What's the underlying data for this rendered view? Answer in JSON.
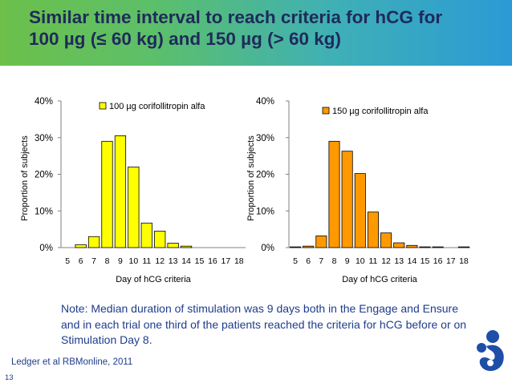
{
  "slide": {
    "title_line1": "Similar time interval to reach criteria for hCG for",
    "title_line2": "100 µg (≤ 60 kg) and 150 µg (> 60 kg)",
    "note": "Note: Median duration of stimulation was 9 days both in the Engage and Ensure and in each trial one third of the patients reached the criteria for hCG before or on Stimulation Day 8.",
    "reference": "Ledger et al RBMonline, 2011",
    "slide_number": "13"
  },
  "chart_data": [
    {
      "type": "bar",
      "categories": [
        "5",
        "6",
        "7",
        "8",
        "9",
        "10",
        "11",
        "12",
        "13",
        "14",
        "15",
        "16",
        "17",
        "18"
      ],
      "series": [
        {
          "name": "100 µg corifollitropin alfa",
          "values": [
            0,
            0.8,
            3.0,
            29.0,
            30.5,
            22.0,
            6.7,
            4.5,
            1.2,
            0.4,
            0,
            0,
            0,
            0
          ]
        }
      ],
      "bar_color": "#ffff00",
      "ylabel": "Proportion of subjects",
      "xlabel": "Day of hCG criteria",
      "ylim": [
        0,
        40
      ],
      "yticks": [
        "0%",
        "10%",
        "20%",
        "30%",
        "40%"
      ],
      "legend_position": "top-center",
      "grid": false
    },
    {
      "type": "bar",
      "categories": [
        "5",
        "6",
        "7",
        "8",
        "9",
        "10",
        "11",
        "12",
        "13",
        "14",
        "15",
        "16",
        "17",
        "18"
      ],
      "series": [
        {
          "name": "150 µg corifollitropin alfa",
          "values": [
            0.2,
            0.4,
            3.2,
            29.0,
            26.3,
            20.2,
            9.7,
            4.0,
            1.3,
            0.6,
            0.2,
            0.2,
            0,
            0.2
          ]
        }
      ],
      "bar_color": "#ff9900",
      "ylabel": "Proportion of subjects",
      "xlabel": "Day of hCG criteria",
      "ylim": [
        0,
        40
      ],
      "yticks": [
        "0%",
        "10%",
        "20%",
        "30%",
        "40%"
      ],
      "legend_position": "top-right",
      "grid": false
    }
  ]
}
